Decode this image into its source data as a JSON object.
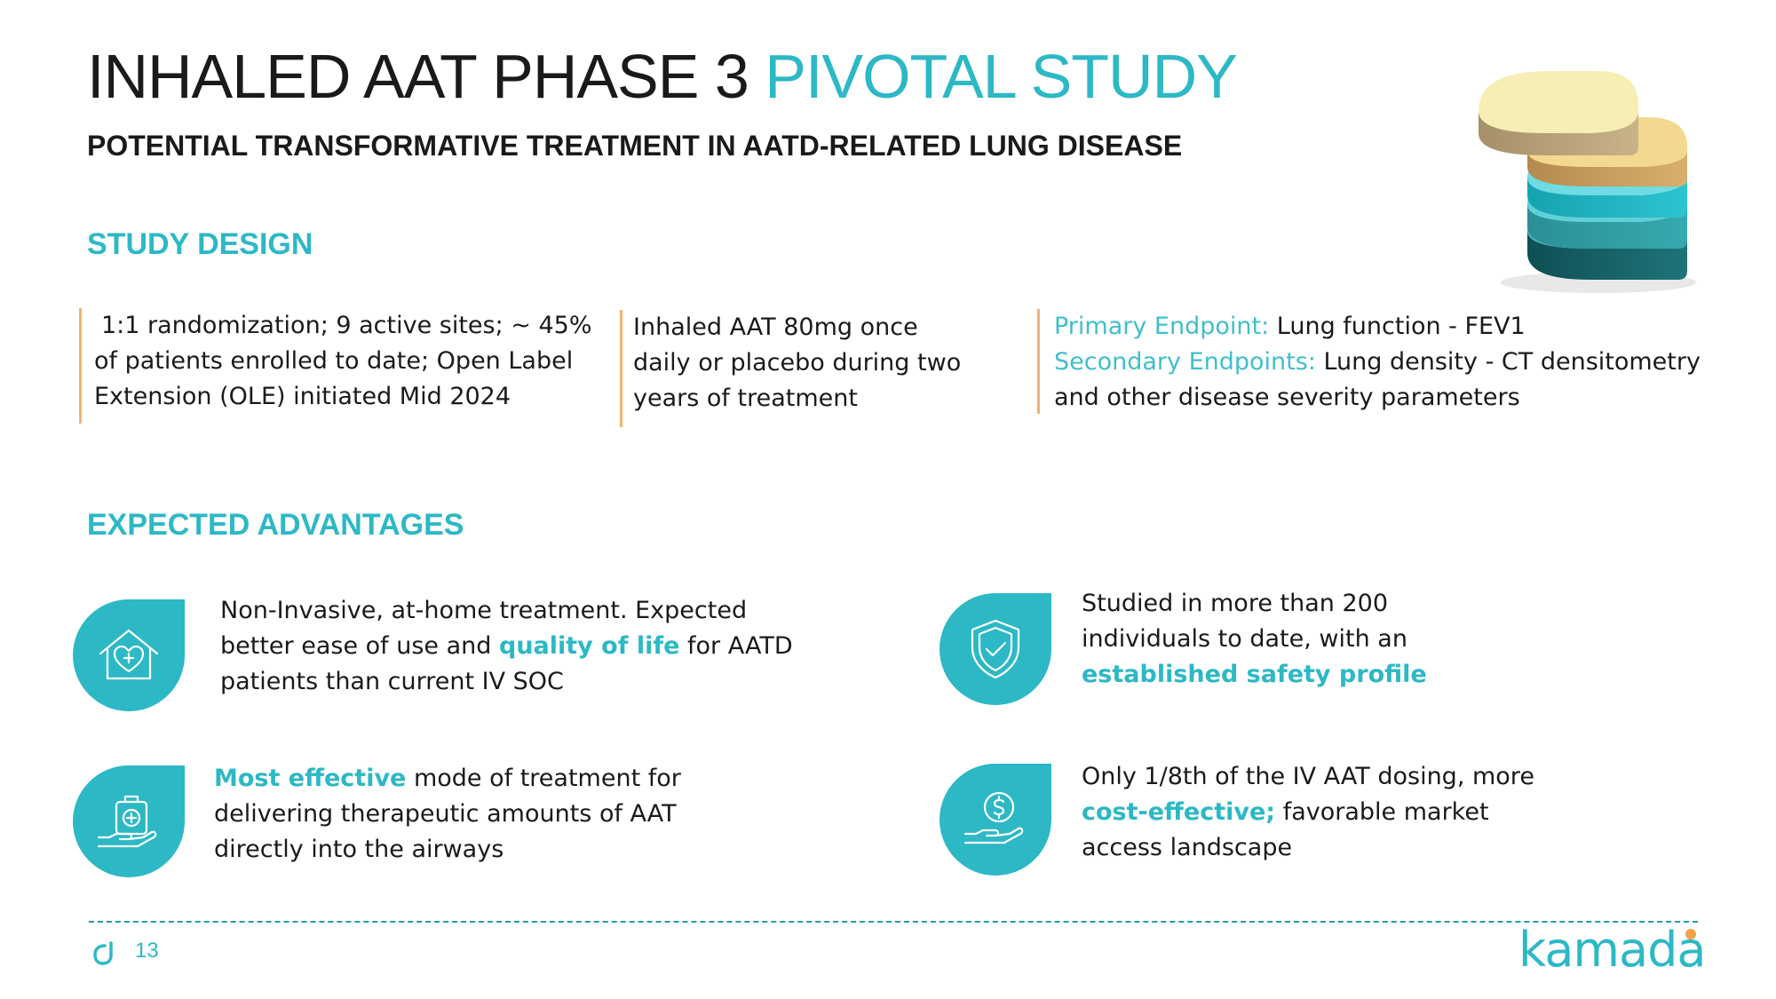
{
  "header": {
    "title_main": "INHALED AAT PHASE 3 ",
    "title_accent": "PIVOTAL STUDY",
    "subtitle": "POTENTIAL TRANSFORMATIVE TREATMENT  IN AATD-RELATED LUNG DISEASE"
  },
  "study_design": {
    "heading": "STUDY DESIGN",
    "col1": {
      "lines": [
        "1:1 randomization; 9 active sites; ~ 45%",
        "of patients enrolled to date; Open Label",
        "Extension (OLE) initiated Mid 2024"
      ]
    },
    "col2": {
      "lines": [
        "Inhaled AAT 80mg once",
        "daily or placebo during two",
        "years of treatment"
      ]
    },
    "col3": {
      "primary_label": "Primary Endpoint:",
      "primary_value": " Lung function - FEV1",
      "secondary_label": "Secondary Endpoints:",
      "secondary_value": " Lung density - CT densitometry",
      "line3": "and other disease severity parameters"
    }
  },
  "expected_advantages": {
    "heading": "EXPECTED ADVANTAGES",
    "items": [
      {
        "icon": "home-care-icon",
        "line1": "Non-Invasive, at-home treatment. Expected",
        "line2_pre": "better ease of use and ",
        "line2_hl": "quality of life",
        "line2_post": " for AATD",
        "line3": "patients than current IV SOC"
      },
      {
        "icon": "shield-check-icon",
        "line1": "Studied in more than 200",
        "line2": "individuals to date, with an",
        "line3_hl": "established safety profile"
      },
      {
        "icon": "medical-kit-hand-icon",
        "line1_hl": "Most effective",
        "line1_post": " mode of treatment for",
        "line2": "delivering therapeutic amounts of AAT",
        "line3": "directly into the airways"
      },
      {
        "icon": "dollar-hand-icon",
        "line1": "Only 1/8th of the IV AAT dosing, more",
        "line2_hl": "cost-effective;",
        "line2_post": " favorable market",
        "line3": "access landscape"
      }
    ]
  },
  "footer": {
    "page_number": "13",
    "brand": "kamada"
  },
  "colors": {
    "accent": "#2db8c5",
    "divider_bar": "#f0b470",
    "dark_teal": "#1e6f73"
  }
}
